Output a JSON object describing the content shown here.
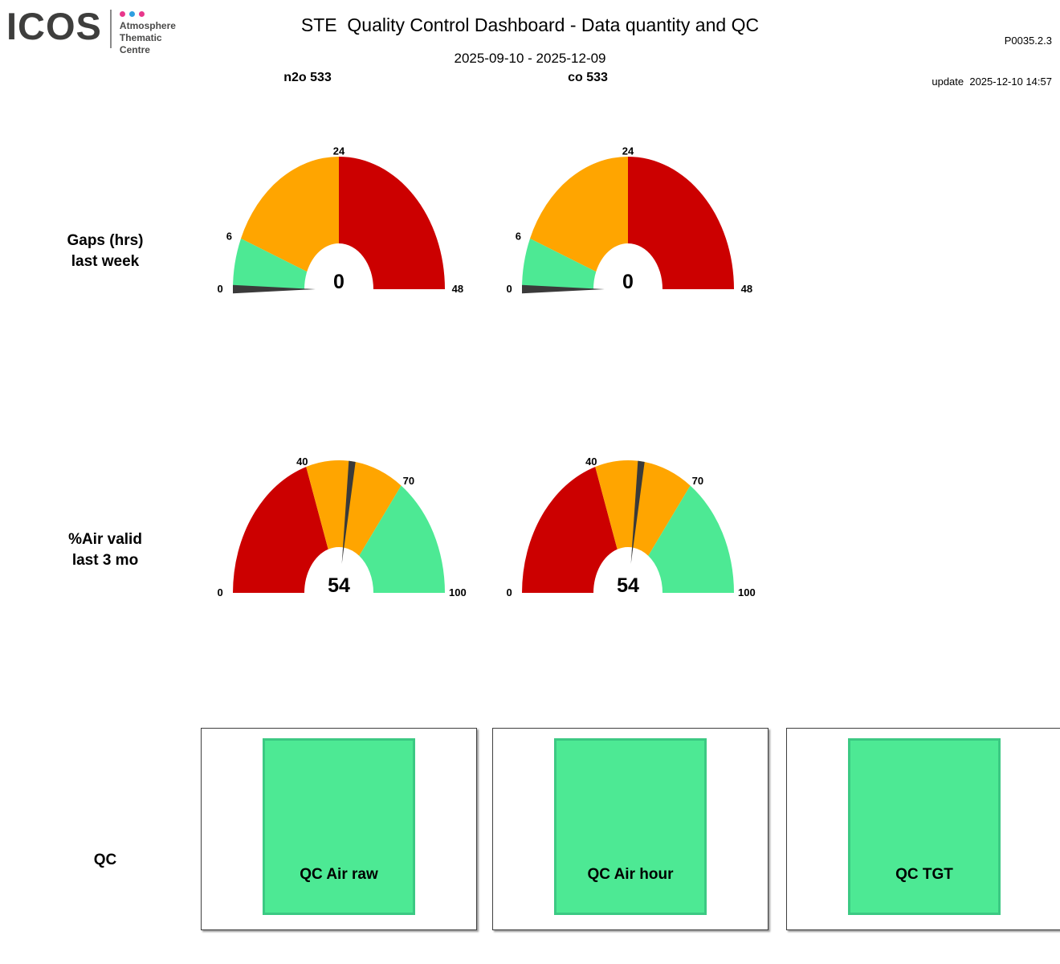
{
  "header": {
    "logo_text": "ICOS",
    "logo_sub_lines": [
      "Atmosphere",
      "Thematic",
      "Centre"
    ],
    "logo_dot_colors": [
      "#e8378b",
      "#2e9fe0",
      "#e8378b"
    ],
    "title": "STE  Quality Control Dashboard - Data quantity and QC",
    "version": "P0035.2.3",
    "update_line": "update  2025-12-10 14:57",
    "subtitle": "2025-09-10 - 2025-12-09"
  },
  "columns": [
    {
      "label": "n2o 533"
    },
    {
      "label": "co 533"
    }
  ],
  "row_labels": [
    {
      "line1": "Gaps (hrs)",
      "line2": "last week"
    },
    {
      "line1": "%Air valid",
      "line2": "last 3 mo"
    },
    {
      "line1": "QC",
      "line2": ""
    }
  ],
  "colors": {
    "good_green": "#4DE994",
    "warn_orange": "#FFA500",
    "bad_red": "#CC0000",
    "needle_gray": "#3A3A3A",
    "qc_green_border": "#3CC983"
  },
  "chart_data": [
    {
      "id": "gauge-gaps-n2o-533",
      "type": "gauge",
      "row_label": "Gaps (hrs) last week",
      "column": "n2o 533",
      "min": 0,
      "max": 48,
      "value": 0,
      "value_label": "0",
      "ticks": [
        0,
        6,
        24,
        48
      ],
      "segments": [
        {
          "from": 0,
          "to": 6,
          "color": "#4DE994"
        },
        {
          "from": 6,
          "to": 24,
          "color": "#FFA500"
        },
        {
          "from": 24,
          "to": 48,
          "color": "#CC0000"
        }
      ]
    },
    {
      "id": "gauge-gaps-co-533",
      "type": "gauge",
      "row_label": "Gaps (hrs) last week",
      "column": "co 533",
      "min": 0,
      "max": 48,
      "value": 0,
      "value_label": "0",
      "ticks": [
        0,
        6,
        24,
        48
      ],
      "segments": [
        {
          "from": 0,
          "to": 6,
          "color": "#4DE994"
        },
        {
          "from": 6,
          "to": 24,
          "color": "#FFA500"
        },
        {
          "from": 24,
          "to": 48,
          "color": "#CC0000"
        }
      ]
    },
    {
      "id": "gauge-airvalid-n2o-533",
      "type": "gauge",
      "row_label": "%Air valid last 3 mo",
      "column": "n2o 533",
      "min": 0,
      "max": 100,
      "value": 54,
      "value_label": "54",
      "ticks": [
        0,
        40,
        70,
        100
      ],
      "segments": [
        {
          "from": 0,
          "to": 40,
          "color": "#CC0000"
        },
        {
          "from": 40,
          "to": 70,
          "color": "#FFA500"
        },
        {
          "from": 70,
          "to": 100,
          "color": "#4DE994"
        }
      ]
    },
    {
      "id": "gauge-airvalid-co-533",
      "type": "gauge",
      "row_label": "%Air valid last 3 mo",
      "column": "co 533",
      "min": 0,
      "max": 100,
      "value": 54,
      "value_label": "54",
      "ticks": [
        0,
        40,
        70,
        100
      ],
      "segments": [
        {
          "from": 0,
          "to": 40,
          "color": "#CC0000"
        },
        {
          "from": 40,
          "to": 70,
          "color": "#FFA500"
        },
        {
          "from": 70,
          "to": 100,
          "color": "#4DE994"
        }
      ]
    }
  ],
  "qc_panels": [
    {
      "label": "QC Air raw",
      "status_color": "#4DE994"
    },
    {
      "label": "QC Air hour",
      "status_color": "#4DE994"
    },
    {
      "label": "QC TGT",
      "status_color": "#4DE994"
    }
  ]
}
